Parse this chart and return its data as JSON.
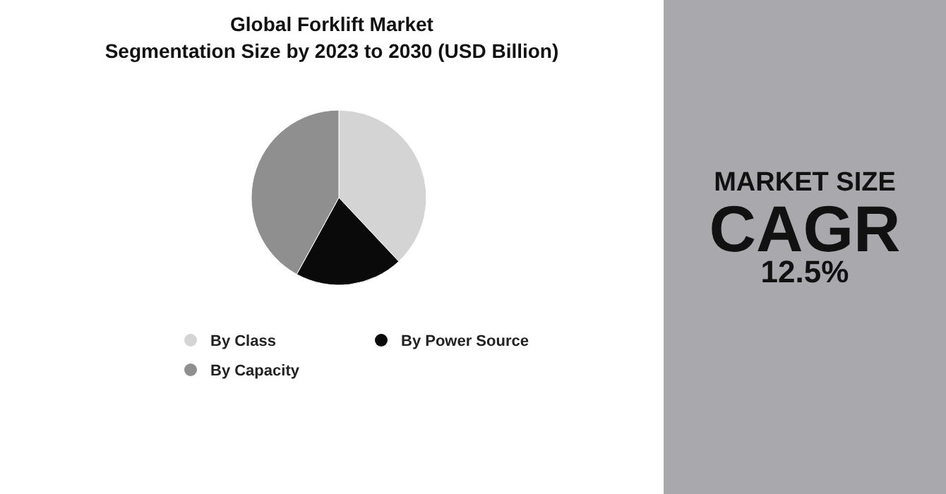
{
  "chart_data": {
    "type": "pie",
    "title": "Global Forklift Market\nSegmentation Size by 2023 to 2030 (USD Billion)",
    "categories": [
      "By Class",
      "By Power Source",
      "By Capacity"
    ],
    "values": [
      38,
      20,
      42
    ],
    "colors": [
      "#d4d4d4",
      "#0a0a0a",
      "#8f8f8f"
    ],
    "legend": "bottom",
    "annotations": [
      "MARKET SIZE",
      "CAGR",
      "12.5%"
    ]
  }
}
